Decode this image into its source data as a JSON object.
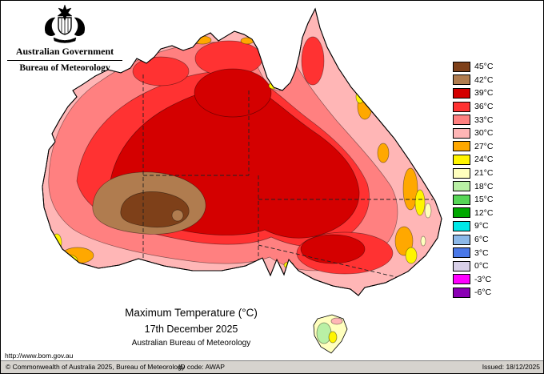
{
  "header": {
    "government": "Australian Government",
    "bureau": "Bureau of Meteorology"
  },
  "map": {
    "title": "Maximum Temperature (°C)",
    "date": "17th December 2025",
    "attribution": "Australian Bureau of Meteorology",
    "url": "http://www.bom.gov.au"
  },
  "legend": {
    "entries": [
      {
        "value": "45",
        "label": "45°C",
        "color": "#7e4019"
      },
      {
        "value": "42",
        "label": "42°C",
        "color": "#b07c4f"
      },
      {
        "value": "39",
        "label": "39°C",
        "color": "#d40000"
      },
      {
        "value": "36",
        "label": "36°C",
        "color": "#ff3232"
      },
      {
        "value": "33",
        "label": "33°C",
        "color": "#ff8080"
      },
      {
        "value": "30",
        "label": "30°C",
        "color": "#ffb6b6"
      },
      {
        "value": "27",
        "label": "27°C",
        "color": "#ffa800"
      },
      {
        "value": "24",
        "label": "24°C",
        "color": "#fff500"
      },
      {
        "value": "21",
        "label": "21°C",
        "color": "#ffffbe"
      },
      {
        "value": "18",
        "label": "18°C",
        "color": "#b9f0a5"
      },
      {
        "value": "15",
        "label": "15°C",
        "color": "#57d657"
      },
      {
        "value": "12",
        "label": "12°C",
        "color": "#00a800"
      },
      {
        "value": "9",
        "label": "9°C",
        "color": "#00e8e8"
      },
      {
        "value": "6",
        "label": "6°C",
        "color": "#8cb8e8"
      },
      {
        "value": "3",
        "label": "3°C",
        "color": "#4a78e8"
      },
      {
        "value": "0",
        "label": "0°C",
        "color": "#d8d0e8"
      },
      {
        "value": "-3",
        "label": "-3°C",
        "color": "#ff00ff"
      },
      {
        "value": "-6",
        "label": "-6°C",
        "color": "#8a00b4"
      }
    ]
  },
  "footer": {
    "copyright": "© Commonwealth of Australia 2025, Bureau of Meteorology",
    "id_code": "ID code: AWAP",
    "issued": "Issued: 18/12/2025"
  }
}
